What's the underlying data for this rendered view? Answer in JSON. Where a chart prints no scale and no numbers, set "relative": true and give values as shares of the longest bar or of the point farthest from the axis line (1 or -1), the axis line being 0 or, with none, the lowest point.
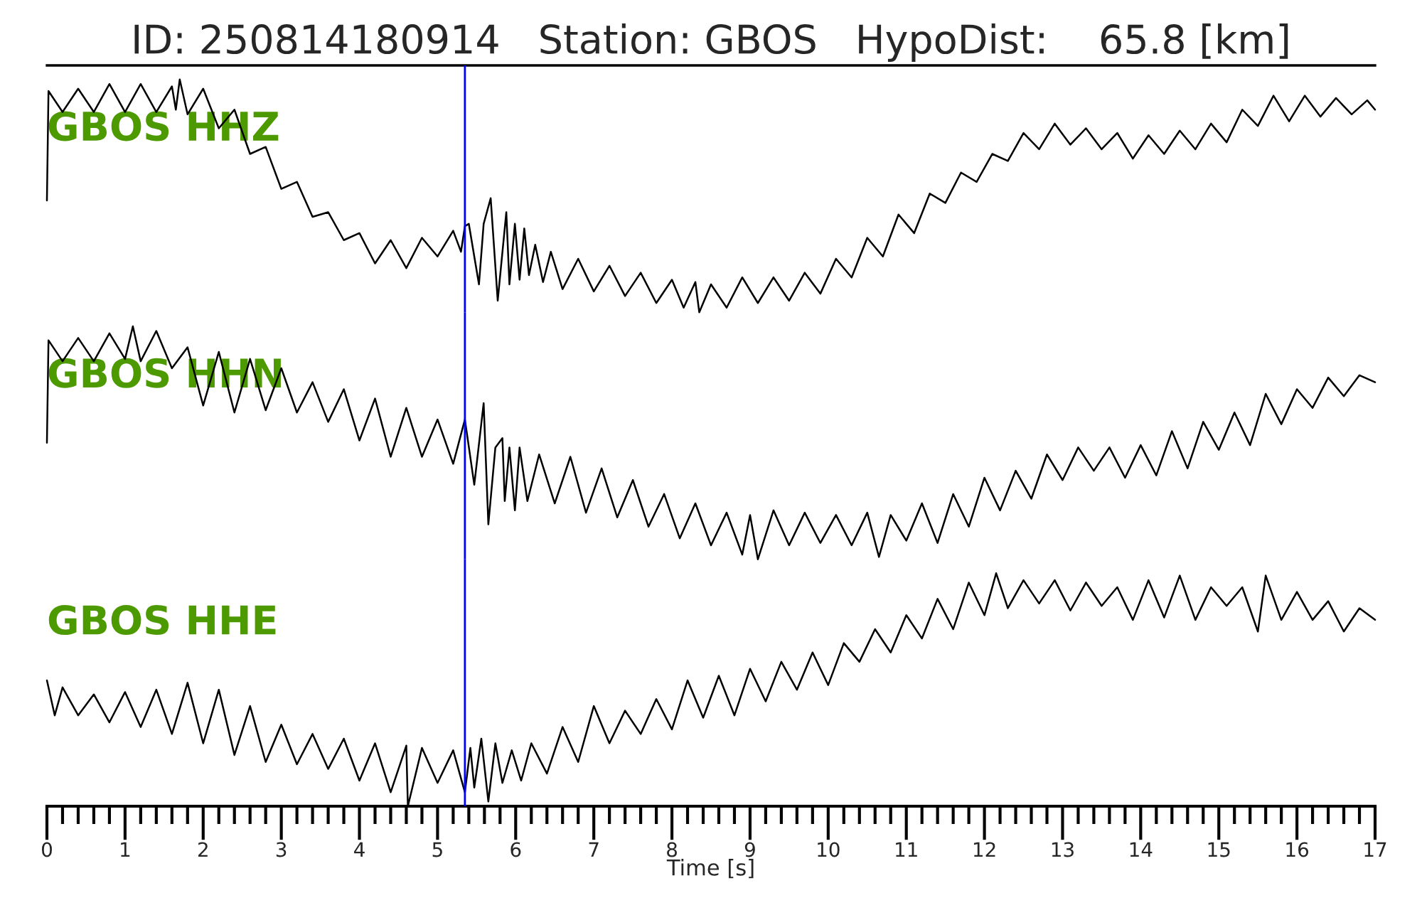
{
  "chart_data": [
    {
      "type": "line",
      "title": "ID: 250814180914   Station: GBOS   HypoDist:    65.8 [km]",
      "relative": true,
      "xlim": [
        0,
        17
      ],
      "tick_labels": false,
      "x": [
        0,
        0.02,
        0.2,
        0.4,
        0.6,
        0.8,
        1.0,
        1.2,
        1.4,
        1.6,
        1.65,
        1.7,
        1.8,
        2.0,
        2.2,
        2.4,
        2.6,
        2.8,
        3.0,
        3.2,
        3.4,
        3.6,
        3.8,
        4.0,
        4.2,
        4.4,
        4.6,
        4.8,
        5.0,
        5.2,
        5.3,
        5.35,
        5.4,
        5.47,
        5.53,
        5.59,
        5.68,
        5.77,
        5.88,
        5.92,
        5.99,
        6.05,
        6.11,
        6.17,
        6.25,
        6.35,
        6.45,
        6.6,
        6.8,
        7.0,
        7.2,
        7.4,
        7.6,
        7.8,
        8.0,
        8.15,
        8.3,
        8.35,
        8.5,
        8.7,
        8.9,
        9.1,
        9.3,
        9.5,
        9.7,
        9.9,
        10.1,
        10.3,
        10.5,
        10.7,
        10.9,
        11.1,
        11.3,
        11.5,
        11.7,
        11.9,
        12.1,
        12.3,
        12.5,
        12.7,
        12.9,
        13.1,
        13.3,
        13.5,
        13.7,
        13.9,
        14.1,
        14.3,
        14.5,
        14.7,
        14.9,
        15.1,
        15.3,
        15.5,
        15.7,
        15.9,
        16.1,
        16.3,
        16.5,
        16.7,
        16.9,
        17.0
      ],
      "series": [
        {
          "name": "GBOS HHZ",
          "color": "#000000",
          "values": [
            0.48,
            0.95,
            0.86,
            0.96,
            0.86,
            0.98,
            0.86,
            0.98,
            0.86,
            0.97,
            0.87,
            1.0,
            0.85,
            0.96,
            0.79,
            0.87,
            0.68,
            0.71,
            0.53,
            0.56,
            0.41,
            0.43,
            0.31,
            0.34,
            0.21,
            0.31,
            0.19,
            0.32,
            0.24,
            0.35,
            0.26,
            0.37,
            0.38,
            0.24,
            0.12,
            0.38,
            0.49,
            0.05,
            0.43,
            0.12,
            0.38,
            0.14,
            0.36,
            0.16,
            0.29,
            0.13,
            0.26,
            0.1,
            0.23,
            0.09,
            0.2,
            0.07,
            0.17,
            0.04,
            0.14,
            0.02,
            0.13,
            0.0,
            0.12,
            0.02,
            0.15,
            0.04,
            0.15,
            0.05,
            0.17,
            0.08,
            0.23,
            0.15,
            0.32,
            0.24,
            0.42,
            0.34,
            0.51,
            0.47,
            0.6,
            0.56,
            0.68,
            0.65,
            0.77,
            0.7,
            0.81,
            0.72,
            0.79,
            0.7,
            0.77,
            0.66,
            0.76,
            0.68,
            0.78,
            0.7,
            0.81,
            0.73,
            0.87,
            0.8,
            0.93,
            0.82,
            0.93,
            0.84,
            0.92,
            0.85,
            0.91,
            0.87
          ]
        }
      ],
      "ref_lines": [
        {
          "axis": "x",
          "value": 5.35,
          "color": "#0000ff"
        }
      ]
    },
    {
      "type": "line",
      "relative": true,
      "xlim": [
        0,
        17
      ],
      "tick_labels": false,
      "x": [
        0,
        0.02,
        0.2,
        0.4,
        0.6,
        0.8,
        1.0,
        1.1,
        1.2,
        1.4,
        1.6,
        1.8,
        2.0,
        2.2,
        2.4,
        2.6,
        2.8,
        3.0,
        3.2,
        3.4,
        3.6,
        3.8,
        4.0,
        4.2,
        4.4,
        4.6,
        4.8,
        5.0,
        5.2,
        5.35,
        5.47,
        5.59,
        5.65,
        5.74,
        5.83,
        5.86,
        5.92,
        5.99,
        6.05,
        6.15,
        6.3,
        6.5,
        6.7,
        6.9,
        7.1,
        7.3,
        7.5,
        7.7,
        7.9,
        8.1,
        8.3,
        8.5,
        8.7,
        8.9,
        9.0,
        9.1,
        9.3,
        9.5,
        9.7,
        9.9,
        10.1,
        10.3,
        10.5,
        10.65,
        10.8,
        11.0,
        11.2,
        11.4,
        11.6,
        11.8,
        12.0,
        12.2,
        12.4,
        12.6,
        12.8,
        13.0,
        13.2,
        13.4,
        13.6,
        13.8,
        14.0,
        14.2,
        14.4,
        14.6,
        14.8,
        15.0,
        15.2,
        15.4,
        15.6,
        15.8,
        16.0,
        16.2,
        16.4,
        16.6,
        16.8,
        17.0
      ],
      "series": [
        {
          "name": "GBOS HHN",
          "color": "#000000",
          "values": [
            0.5,
            0.94,
            0.85,
            0.95,
            0.85,
            0.97,
            0.86,
            1.0,
            0.85,
            0.98,
            0.82,
            0.91,
            0.66,
            0.89,
            0.63,
            0.86,
            0.64,
            0.82,
            0.63,
            0.76,
            0.59,
            0.73,
            0.51,
            0.69,
            0.44,
            0.65,
            0.44,
            0.6,
            0.41,
            0.6,
            0.32,
            0.67,
            0.15,
            0.48,
            0.52,
            0.25,
            0.48,
            0.21,
            0.48,
            0.25,
            0.45,
            0.24,
            0.44,
            0.2,
            0.39,
            0.18,
            0.34,
            0.14,
            0.28,
            0.09,
            0.24,
            0.06,
            0.2,
            0.02,
            0.19,
            0.0,
            0.21,
            0.06,
            0.2,
            0.07,
            0.19,
            0.06,
            0.2,
            0.01,
            0.19,
            0.08,
            0.24,
            0.07,
            0.28,
            0.14,
            0.35,
            0.21,
            0.38,
            0.26,
            0.45,
            0.34,
            0.48,
            0.38,
            0.48,
            0.35,
            0.49,
            0.36,
            0.55,
            0.39,
            0.59,
            0.47,
            0.63,
            0.49,
            0.71,
            0.58,
            0.73,
            0.65,
            0.78,
            0.7,
            0.79,
            0.76
          ]
        }
      ],
      "ref_lines": [
        {
          "axis": "x",
          "value": 5.35,
          "color": "#0000ff"
        }
      ]
    },
    {
      "type": "line",
      "relative": true,
      "xlim": [
        0,
        17
      ],
      "tick_labels": "x",
      "xlabel": "Time [s]",
      "xticks": [
        0,
        {
          "value": 0.2,
          "label": null
        },
        {
          "value": 0.4,
          "label": null
        },
        {
          "value": 0.6,
          "label": null
        },
        {
          "value": 0.8,
          "label": null
        },
        1,
        {
          "value": 1.2,
          "label": null
        },
        {
          "value": 1.4,
          "label": null
        },
        {
          "value": 1.6,
          "label": null
        },
        {
          "value": 1.8,
          "label": null
        },
        2,
        {
          "value": 2.2,
          "label": null
        },
        {
          "value": 2.4,
          "label": null
        },
        {
          "value": 2.6,
          "label": null
        },
        {
          "value": 2.8,
          "label": null
        },
        3,
        {
          "value": 3.2,
          "label": null
        },
        {
          "value": 3.4,
          "label": null
        },
        {
          "value": 3.6,
          "label": null
        },
        {
          "value": 3.8,
          "label": null
        },
        4,
        {
          "value": 4.2,
          "label": null
        },
        {
          "value": 4.4,
          "label": null
        },
        {
          "value": 4.6,
          "label": null
        },
        {
          "value": 4.8,
          "label": null
        },
        5,
        {
          "value": 5.2,
          "label": null
        },
        {
          "value": 5.4,
          "label": null
        },
        {
          "value": 5.6,
          "label": null
        },
        {
          "value": 5.8,
          "label": null
        },
        6,
        {
          "value": 6.2,
          "label": null
        },
        {
          "value": 6.4,
          "label": null
        },
        {
          "value": 6.6,
          "label": null
        },
        {
          "value": 6.8,
          "label": null
        },
        7,
        {
          "value": 7.2,
          "label": null
        },
        {
          "value": 7.4,
          "label": null
        },
        {
          "value": 7.6,
          "label": null
        },
        {
          "value": 7.8,
          "label": null
        },
        8,
        {
          "value": 8.2,
          "label": null
        },
        {
          "value": 8.4,
          "label": null
        },
        {
          "value": 8.6,
          "label": null
        },
        {
          "value": 8.8,
          "label": null
        },
        9,
        {
          "value": 9.2,
          "label": null
        },
        {
          "value": 9.4,
          "label": null
        },
        {
          "value": 9.6,
          "label": null
        },
        {
          "value": 9.8,
          "label": null
        },
        10,
        {
          "value": 10.2,
          "label": null
        },
        {
          "value": 10.4,
          "label": null
        },
        {
          "value": 10.6,
          "label": null
        },
        {
          "value": 10.8,
          "label": null
        },
        11,
        {
          "value": 11.2,
          "label": null
        },
        {
          "value": 11.4,
          "label": null
        },
        {
          "value": 11.6,
          "label": null
        },
        {
          "value": 11.8,
          "label": null
        },
        12,
        {
          "value": 12.2,
          "label": null
        },
        {
          "value": 12.4,
          "label": null
        },
        {
          "value": 12.6,
          "label": null
        },
        {
          "value": 12.8,
          "label": null
        },
        13,
        {
          "value": 13.2,
          "label": null
        },
        {
          "value": 13.4,
          "label": null
        },
        {
          "value": 13.6,
          "label": null
        },
        {
          "value": 13.8,
          "label": null
        },
        14,
        {
          "value": 14.2,
          "label": null
        },
        {
          "value": 14.4,
          "label": null
        },
        {
          "value": 14.6,
          "label": null
        },
        {
          "value": 14.8,
          "label": null
        },
        15,
        {
          "value": 15.2,
          "label": null
        },
        {
          "value": 15.4,
          "label": null
        },
        {
          "value": 15.6,
          "label": null
        },
        {
          "value": 15.8,
          "label": null
        },
        16,
        {
          "value": 16.2,
          "label": null
        },
        {
          "value": 16.4,
          "label": null
        },
        {
          "value": 16.6,
          "label": null
        },
        {
          "value": 16.8,
          "label": null
        },
        17
      ],
      "x": [
        0,
        0.1,
        0.2,
        0.4,
        0.6,
        0.8,
        1.0,
        1.2,
        1.4,
        1.6,
        1.8,
        2.0,
        2.2,
        2.4,
        2.6,
        2.8,
        3.0,
        3.2,
        3.4,
        3.6,
        3.8,
        4.0,
        4.2,
        4.4,
        4.6,
        4.62,
        4.8,
        5.0,
        5.2,
        5.35,
        5.42,
        5.47,
        5.56,
        5.65,
        5.74,
        5.83,
        5.95,
        6.07,
        6.2,
        6.4,
        6.6,
        6.8,
        7.0,
        7.2,
        7.4,
        7.6,
        7.8,
        8.0,
        8.2,
        8.4,
        8.6,
        8.8,
        9.0,
        9.2,
        9.4,
        9.6,
        9.8,
        10.0,
        10.2,
        10.4,
        10.6,
        10.8,
        11.0,
        11.2,
        11.4,
        11.6,
        11.8,
        12.0,
        12.15,
        12.3,
        12.5,
        12.7,
        12.9,
        13.1,
        13.3,
        13.5,
        13.7,
        13.9,
        14.1,
        14.3,
        14.5,
        14.7,
        14.9,
        15.1,
        15.3,
        15.5,
        15.6,
        15.8,
        16.0,
        16.2,
        16.4,
        16.6,
        16.8,
        17.0
      ],
      "series": [
        {
          "name": "GBOS HHE",
          "color": "#000000",
          "values": [
            0.54,
            0.39,
            0.51,
            0.39,
            0.48,
            0.36,
            0.49,
            0.34,
            0.5,
            0.31,
            0.53,
            0.27,
            0.5,
            0.22,
            0.43,
            0.19,
            0.35,
            0.18,
            0.31,
            0.16,
            0.29,
            0.11,
            0.27,
            0.06,
            0.26,
            0.0,
            0.25,
            0.1,
            0.24,
            0.06,
            0.25,
            0.08,
            0.29,
            0.02,
            0.27,
            0.1,
            0.24,
            0.11,
            0.27,
            0.14,
            0.34,
            0.19,
            0.43,
            0.27,
            0.41,
            0.31,
            0.46,
            0.33,
            0.54,
            0.38,
            0.56,
            0.39,
            0.59,
            0.45,
            0.62,
            0.5,
            0.66,
            0.52,
            0.7,
            0.62,
            0.76,
            0.66,
            0.82,
            0.72,
            0.89,
            0.76,
            0.96,
            0.82,
            1.0,
            0.85,
            0.97,
            0.87,
            0.97,
            0.84,
            0.96,
            0.86,
            0.94,
            0.8,
            0.97,
            0.81,
            0.99,
            0.8,
            0.94,
            0.86,
            0.94,
            0.75,
            0.99,
            0.8,
            0.92,
            0.8,
            0.88,
            0.75,
            0.85,
            0.8
          ]
        }
      ],
      "ref_lines": [
        {
          "axis": "x",
          "value": 5.35,
          "color": "#0000ff"
        }
      ]
    }
  ]
}
